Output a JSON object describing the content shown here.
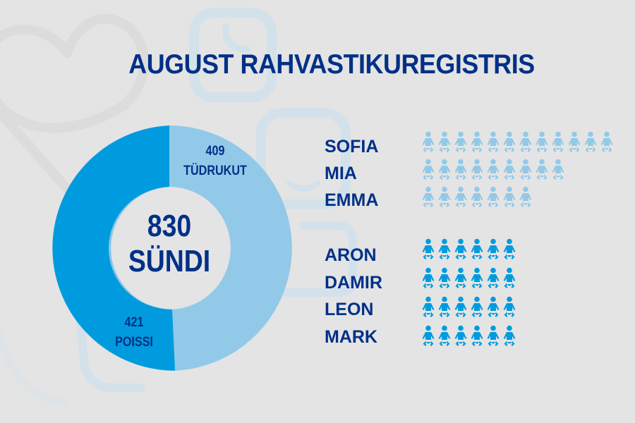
{
  "title": "AUGUST RAHVASTIKUREGISTRIS",
  "donut": {
    "total_value": "830",
    "total_label": "SÜNDI",
    "girls": {
      "value": "409",
      "label": "TÜDRUKUT",
      "color": "#93c9e8"
    },
    "boys": {
      "value": "421",
      "label": "POISSI",
      "color": "#009bde"
    }
  },
  "girls_names": [
    {
      "name": "SOFIA",
      "count": 12
    },
    {
      "name": "MIA",
      "count": 9
    },
    {
      "name": "EMMA",
      "count": 7
    }
  ],
  "boys_names": [
    {
      "name": "ARON",
      "count": 6
    },
    {
      "name": "DAMIR",
      "count": 6
    },
    {
      "name": "LEON",
      "count": 6
    },
    {
      "name": "MARK",
      "count": 6
    }
  ],
  "colors": {
    "text": "#003087",
    "background": "#e4e4e4",
    "girls": "#93c9e8",
    "boys": "#009bde"
  },
  "chart_data": [
    {
      "type": "pie",
      "title": "830 SÜNDI",
      "categories": [
        "TÜDRUKUT",
        "POISSI"
      ],
      "values": [
        409,
        421
      ],
      "total": 830,
      "colors": [
        "#93c9e8",
        "#009bde"
      ],
      "donut": true
    },
    {
      "type": "bar",
      "title": "Popular names (pictogram)",
      "categories": [
        "SOFIA",
        "MIA",
        "EMMA",
        "ARON",
        "DAMIR",
        "LEON",
        "MARK"
      ],
      "values": [
        12,
        9,
        7,
        6,
        6,
        6,
        6
      ],
      "series_group": [
        "girls",
        "girls",
        "girls",
        "boys",
        "boys",
        "boys",
        "boys"
      ]
    }
  ]
}
